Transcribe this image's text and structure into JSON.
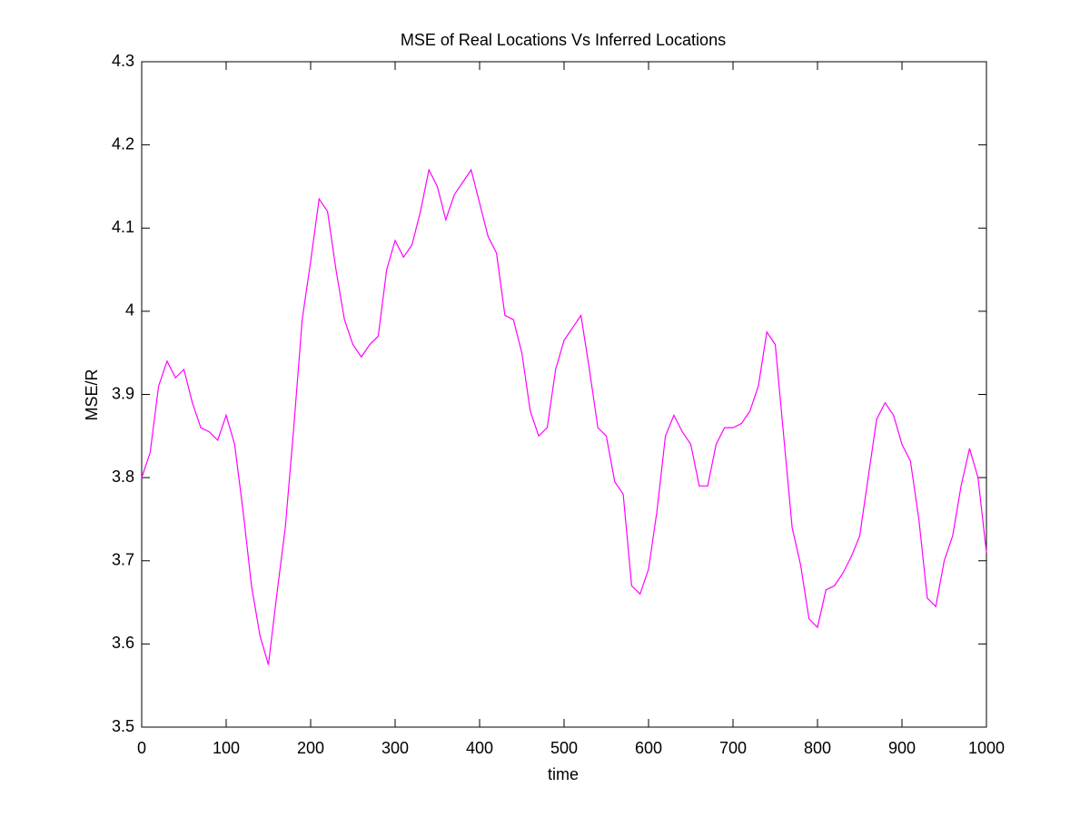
{
  "chart_data": {
    "type": "line",
    "title": "MSE of Real Locations Vs Inferred Locations",
    "x_label": "time",
    "y_label": "MSE/R",
    "color": "#ff00ff",
    "grid": false,
    "xlim": [
      0,
      1000
    ],
    "ylim": [
      3.5,
      4.3
    ],
    "xticks": [
      0,
      100,
      200,
      300,
      400,
      500,
      600,
      700,
      800,
      900,
      1000
    ],
    "yticks": [
      3.5,
      3.6,
      3.7,
      3.8,
      3.9,
      4,
      4.1,
      4.2,
      4.3
    ],
    "x": [
      0,
      10,
      20,
      30,
      40,
      50,
      60,
      70,
      80,
      90,
      100,
      110,
      120,
      130,
      140,
      150,
      160,
      170,
      180,
      190,
      200,
      210,
      220,
      230,
      240,
      250,
      260,
      270,
      280,
      290,
      300,
      310,
      320,
      330,
      340,
      350,
      360,
      370,
      380,
      390,
      400,
      410,
      420,
      430,
      440,
      450,
      460,
      470,
      480,
      490,
      500,
      510,
      520,
      530,
      540,
      550,
      560,
      570,
      580,
      590,
      600,
      610,
      620,
      630,
      640,
      650,
      660,
      670,
      680,
      690,
      700,
      710,
      720,
      730,
      740,
      750,
      760,
      770,
      780,
      790,
      800,
      810,
      820,
      830,
      840,
      850,
      860,
      870,
      880,
      890,
      900,
      910,
      920,
      930,
      940,
      950,
      960,
      970,
      980,
      990,
      1000
    ],
    "values": [
      3.8,
      3.83,
      3.91,
      3.94,
      3.92,
      3.93,
      3.89,
      3.86,
      3.855,
      3.845,
      3.875,
      3.84,
      3.76,
      3.67,
      3.61,
      3.575,
      3.66,
      3.74,
      3.86,
      3.99,
      4.06,
      4.135,
      4.12,
      4.05,
      3.99,
      3.96,
      3.945,
      3.96,
      3.97,
      4.05,
      4.085,
      4.065,
      4.08,
      4.12,
      4.17,
      4.15,
      4.11,
      4.14,
      4.155,
      4.17,
      4.13,
      4.09,
      4.07,
      3.995,
      3.99,
      3.95,
      3.88,
      3.85,
      3.86,
      3.93,
      3.965,
      3.98,
      3.995,
      3.93,
      3.86,
      3.85,
      3.795,
      3.78,
      3.67,
      3.66,
      3.69,
      3.76,
      3.85,
      3.875,
      3.855,
      3.84,
      3.79,
      3.79,
      3.84,
      3.86,
      3.86,
      3.865,
      3.88,
      3.91,
      3.975,
      3.96,
      3.85,
      3.74,
      3.695,
      3.63,
      3.62,
      3.665,
      3.67,
      3.685,
      3.705,
      3.73,
      3.8,
      3.87,
      3.89,
      3.875,
      3.84,
      3.82,
      3.75,
      3.655,
      3.645,
      3.7,
      3.73,
      3.79,
      3.835,
      3.8,
      3.71
    ]
  }
}
